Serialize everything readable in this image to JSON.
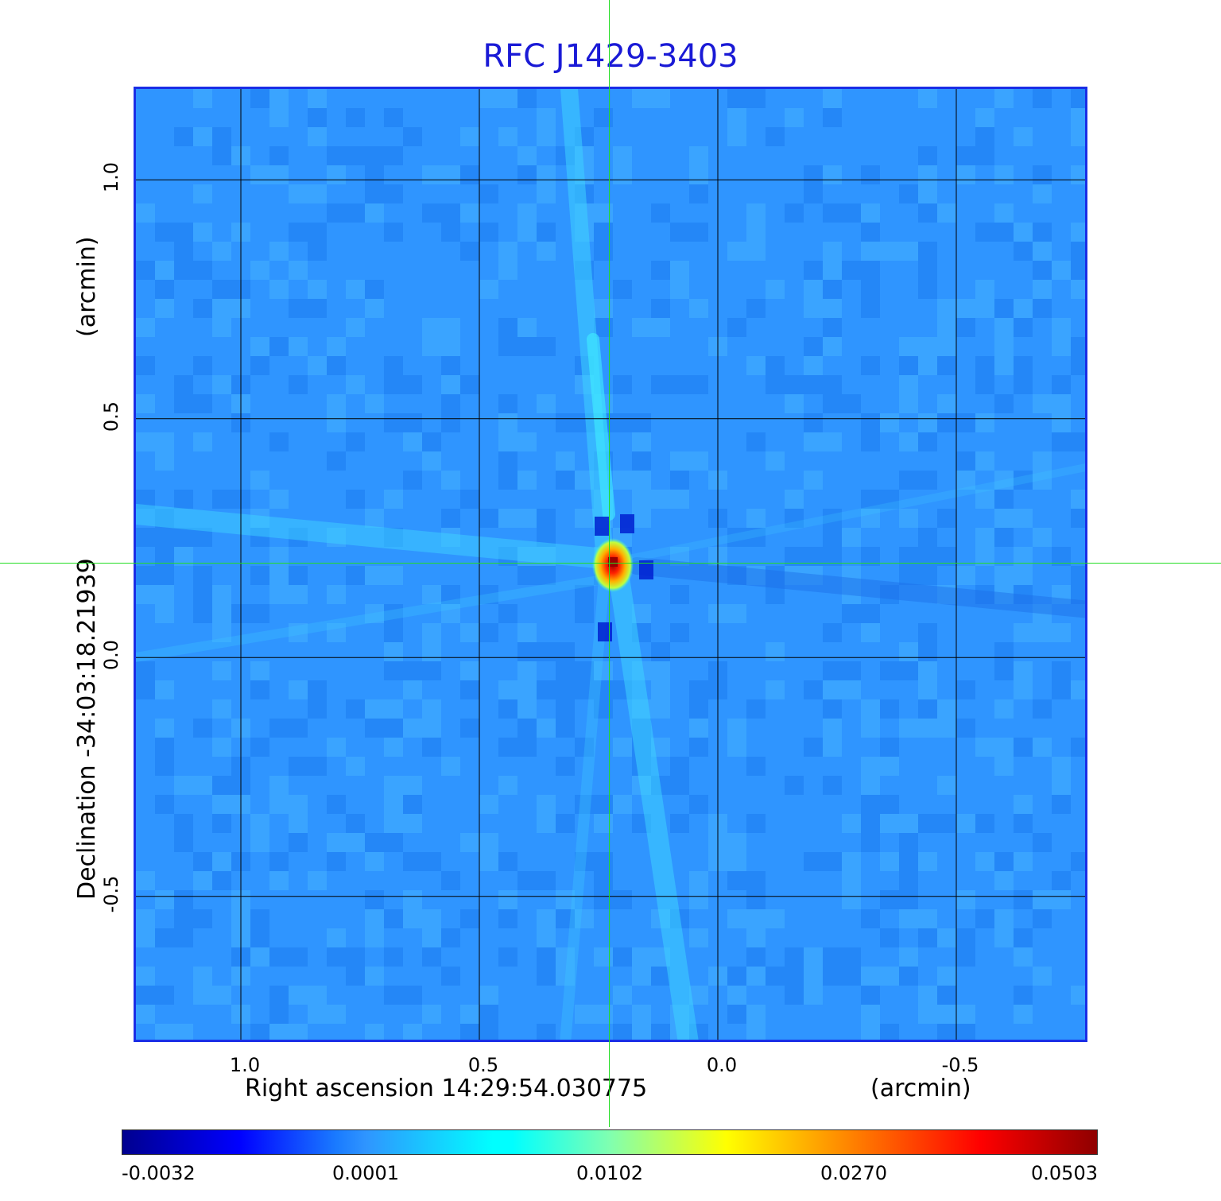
{
  "chart_data": {
    "type": "heatmap",
    "title": "RFC J1429-3403",
    "xlabel": "Right ascension  14:29:54.030775",
    "xunit": "(arcmin)",
    "ylabel": "Declination  -34:03:18.21939",
    "yunit": "(arcmin)",
    "x_ticks": [
      "1.0",
      "0.5",
      "0.0",
      "-0.5"
    ],
    "y_ticks": [
      "1.0",
      "0.5",
      "0.0",
      "-0.5"
    ],
    "x_tick_values": [
      1.0,
      0.5,
      0.0,
      -0.5
    ],
    "y_tick_values": [
      1.0,
      0.5,
      0.0,
      -0.5
    ],
    "xlim": [
      1.22,
      -0.78
    ],
    "ylim": [
      -0.81,
      1.19
    ],
    "grid": true,
    "source_peak": {
      "x": 0.22,
      "y": 0.2,
      "value": 0.0503
    },
    "colorbar": {
      "colormap": "jet",
      "ticks": [
        "-0.0032",
        "0.0001",
        "0.0102",
        "0.0270",
        "0.0503"
      ]
    },
    "colors": {
      "title": "#1a1ad6",
      "background_level": "#2f95ff",
      "crosshair": "#22dd22",
      "frame": "#1a2ee6"
    }
  }
}
